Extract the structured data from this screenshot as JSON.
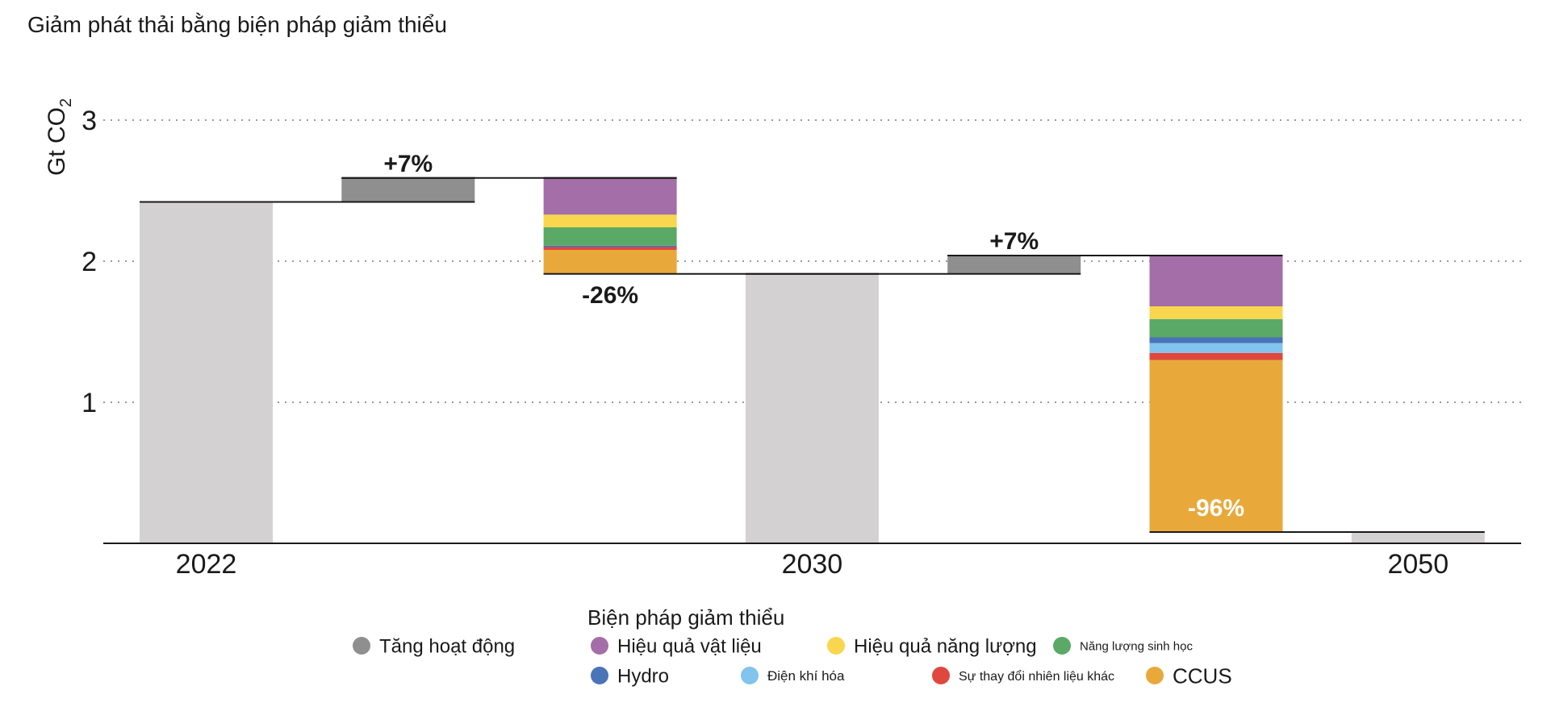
{
  "chart_data": {
    "type": "bar",
    "subtype": "waterfall",
    "title": "Giảm phát thải bằng biện pháp giảm thiểu",
    "ylabel": "Gt CO2",
    "ylabel_main": "Gt CO",
    "ylabel_sub": "2",
    "ylim": [
      0,
      3
    ],
    "yticks": [
      1,
      2,
      3
    ],
    "grid": "horizontal-dotted",
    "categories": [
      "2022",
      "",
      "",
      "2030",
      "",
      "",
      "2050"
    ],
    "bars": [
      {
        "kind": "total",
        "category": "2022",
        "value": 2.42
      },
      {
        "kind": "increase",
        "from": 2.42,
        "to": 2.59,
        "label": "+7%"
      },
      {
        "kind": "reduction",
        "from": 2.59,
        "to": 1.91,
        "label": "-26%",
        "segments": [
          {
            "series": "CCUS",
            "value": 0.17
          },
          {
            "series": "Sự thay đổi nhiên liệu khác",
            "value": 0.02
          },
          {
            "series": "Hydro",
            "value": 0.01
          },
          {
            "series": "Năng lượng sinh học",
            "value": 0.13
          },
          {
            "series": "Hiệu quả năng lượng",
            "value": 0.09
          },
          {
            "series": "Hiệu quả vật liệu",
            "value": 0.26
          }
        ]
      },
      {
        "kind": "total",
        "category": "2030",
        "value": 1.91
      },
      {
        "kind": "increase",
        "from": 1.91,
        "to": 2.04,
        "label": "+7%"
      },
      {
        "kind": "reduction",
        "from": 2.04,
        "to": 0.08,
        "label": "-96%",
        "segments": [
          {
            "series": "CCUS",
            "value": 1.22
          },
          {
            "series": "Sự thay đổi nhiên liệu khác",
            "value": 0.05
          },
          {
            "series": "Điện khí hóa",
            "value": 0.07
          },
          {
            "series": "Hydro",
            "value": 0.04
          },
          {
            "series": "Năng lượng sinh học",
            "value": 0.13
          },
          {
            "series": "Hiệu quả năng lượng",
            "value": 0.09
          },
          {
            "series": "Hiệu quả vật liệu",
            "value": 0.36
          }
        ]
      },
      {
        "kind": "total",
        "category": "2050",
        "value": 0.08
      }
    ],
    "colors": {
      "total": "#d3d1d2",
      "Tăng hoạt động": "#8f8f8f",
      "Hiệu quả vật liệu": "#a46ea8",
      "Hiệu quả năng lượng": "#f8d64d",
      "Năng lượng sinh học": "#5aa966",
      "Hydro": "#4a73b8",
      "Điện khí hóa": "#81c4ec",
      "Sự thay đổi nhiên liệu khác": "#e0473f",
      "CCUS": "#e8a93a"
    },
    "legend": {
      "title": "Biện pháp giảm thiểu",
      "placement": "bottom-center",
      "items": [
        {
          "name": "Tăng hoạt động",
          "color": "#8f8f8f"
        },
        {
          "name": "Hiệu quả vật liệu",
          "color": "#a46ea8"
        },
        {
          "name": "Hiệu quả năng lượng",
          "color": "#f8d64d"
        },
        {
          "name": "Năng lượng sinh học",
          "color": "#5aa966"
        },
        {
          "name": "Hydro",
          "color": "#4a73b8"
        },
        {
          "name": "Điện khí hóa",
          "color": "#81c4ec"
        },
        {
          "name": "Sự thay đổi nhiên liệu khác",
          "color": "#e0473f"
        },
        {
          "name": "CCUS",
          "color": "#e8a93a"
        }
      ]
    }
  }
}
